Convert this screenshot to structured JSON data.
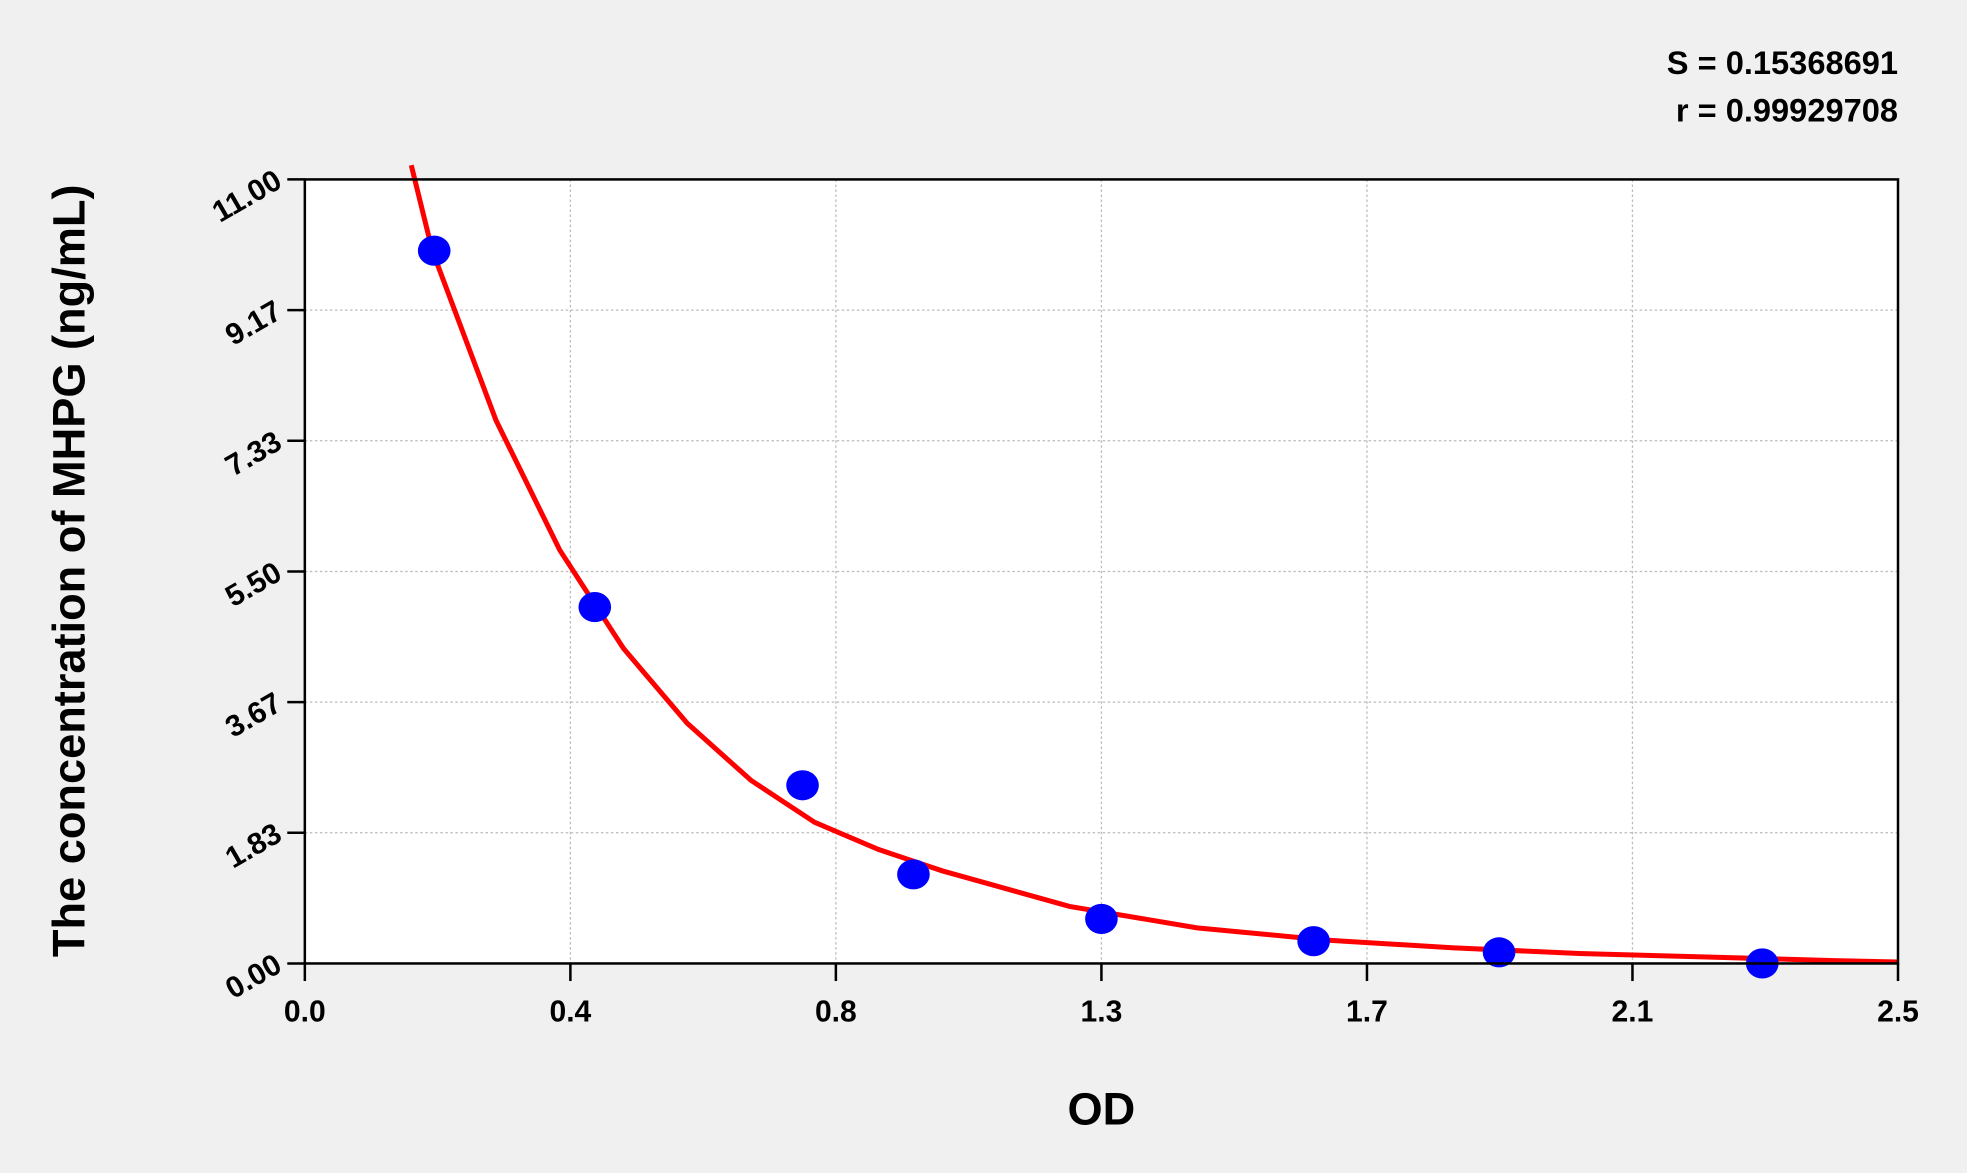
{
  "chart_data": {
    "type": "scatter",
    "annotations": [
      "S = 0.15368691",
      "r = 0.99929708"
    ],
    "x_label": "OD",
    "y_label": "The concentration of MHPG (ng/mL)",
    "xlim": [
      0,
      2.5
    ],
    "ylim": [
      0,
      11
    ],
    "xticks": [
      {
        "value": 0,
        "label": "0.0"
      },
      {
        "value": 0.4167,
        "label": "0.4"
      },
      {
        "value": 0.8333,
        "label": "0.8"
      },
      {
        "value": 1.25,
        "label": "1.3"
      },
      {
        "value": 1.6667,
        "label": "1.7"
      },
      {
        "value": 2.0833,
        "label": "2.1"
      },
      2.5
    ],
    "yticks": [
      {
        "value": 0,
        "label": "0.00"
      },
      {
        "value": 1.8333,
        "label": "1.83"
      },
      {
        "value": 3.6667,
        "label": "3.67"
      },
      {
        "value": 5.5,
        "label": "5.50"
      },
      {
        "value": 7.3333,
        "label": "7.33"
      },
      {
        "value": 9.1667,
        "label": "9.17"
      },
      {
        "value": 11,
        "label": "11.00"
      }
    ],
    "grid": true,
    "series": [
      {
        "kind": "points",
        "color": "#0000ff",
        "x": [
          0.203,
          0.455,
          0.781,
          0.955,
          1.25,
          1.583,
          1.874,
          2.287
        ],
        "values": [
          10,
          5,
          2.5,
          1.25,
          0.625,
          0.3125,
          0.156,
          0
        ]
      },
      {
        "kind": "line",
        "color": "#ff0000",
        "x": [
          0.167,
          0.2,
          0.3,
          0.4,
          0.5,
          0.6,
          0.7,
          0.8,
          0.9,
          1.0,
          1.2,
          1.4,
          1.6,
          1.8,
          2.0,
          2.2,
          2.4,
          2.5
        ],
        "values": [
          11.2,
          10,
          7.62,
          5.8,
          4.42,
          3.37,
          2.57,
          1.98,
          1.6,
          1.3,
          0.8,
          0.5,
          0.33,
          0.22,
          0.14,
          0.09,
          0.04,
          0.02
        ]
      }
    ]
  }
}
